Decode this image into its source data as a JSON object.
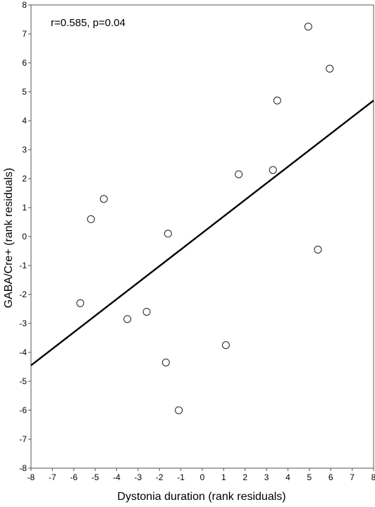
{
  "chart_data": {
    "type": "scatter",
    "title": "",
    "annotation": "r=0.585, p=0.04",
    "xlabel": "Dystonia duration (rank residuals)",
    "ylabel": "GABA/Cre+ (rank residuals)",
    "xlim": [
      -8,
      8
    ],
    "ylim": [
      -8,
      8
    ],
    "xticks": [
      -8,
      -7,
      -6,
      -5,
      -4,
      -3,
      -2,
      -1,
      0,
      1,
      2,
      3,
      4,
      5,
      6,
      7,
      8
    ],
    "yticks": [
      -8,
      -7,
      -6,
      -5,
      -4,
      -3,
      -2,
      -1,
      0,
      1,
      2,
      3,
      4,
      5,
      6,
      7,
      8
    ],
    "grid": false,
    "points": [
      {
        "x": -5.7,
        "y": -2.3
      },
      {
        "x": -5.2,
        "y": 0.6
      },
      {
        "x": -4.6,
        "y": 1.3
      },
      {
        "x": -3.5,
        "y": -2.85
      },
      {
        "x": -2.6,
        "y": -2.6
      },
      {
        "x": -1.6,
        "y": 0.1
      },
      {
        "x": -1.7,
        "y": -4.35
      },
      {
        "x": -1.1,
        "y": -6.0
      },
      {
        "x": 1.1,
        "y": -3.75
      },
      {
        "x": 1.7,
        "y": 2.15
      },
      {
        "x": 3.3,
        "y": 2.3
      },
      {
        "x": 3.5,
        "y": 4.7
      },
      {
        "x": 4.95,
        "y": 7.25
      },
      {
        "x": 5.4,
        "y": -0.45
      },
      {
        "x": 5.95,
        "y": 5.8
      }
    ],
    "fit_line": {
      "x": [
        -8,
        8
      ],
      "y": [
        -4.45,
        4.7
      ]
    }
  }
}
